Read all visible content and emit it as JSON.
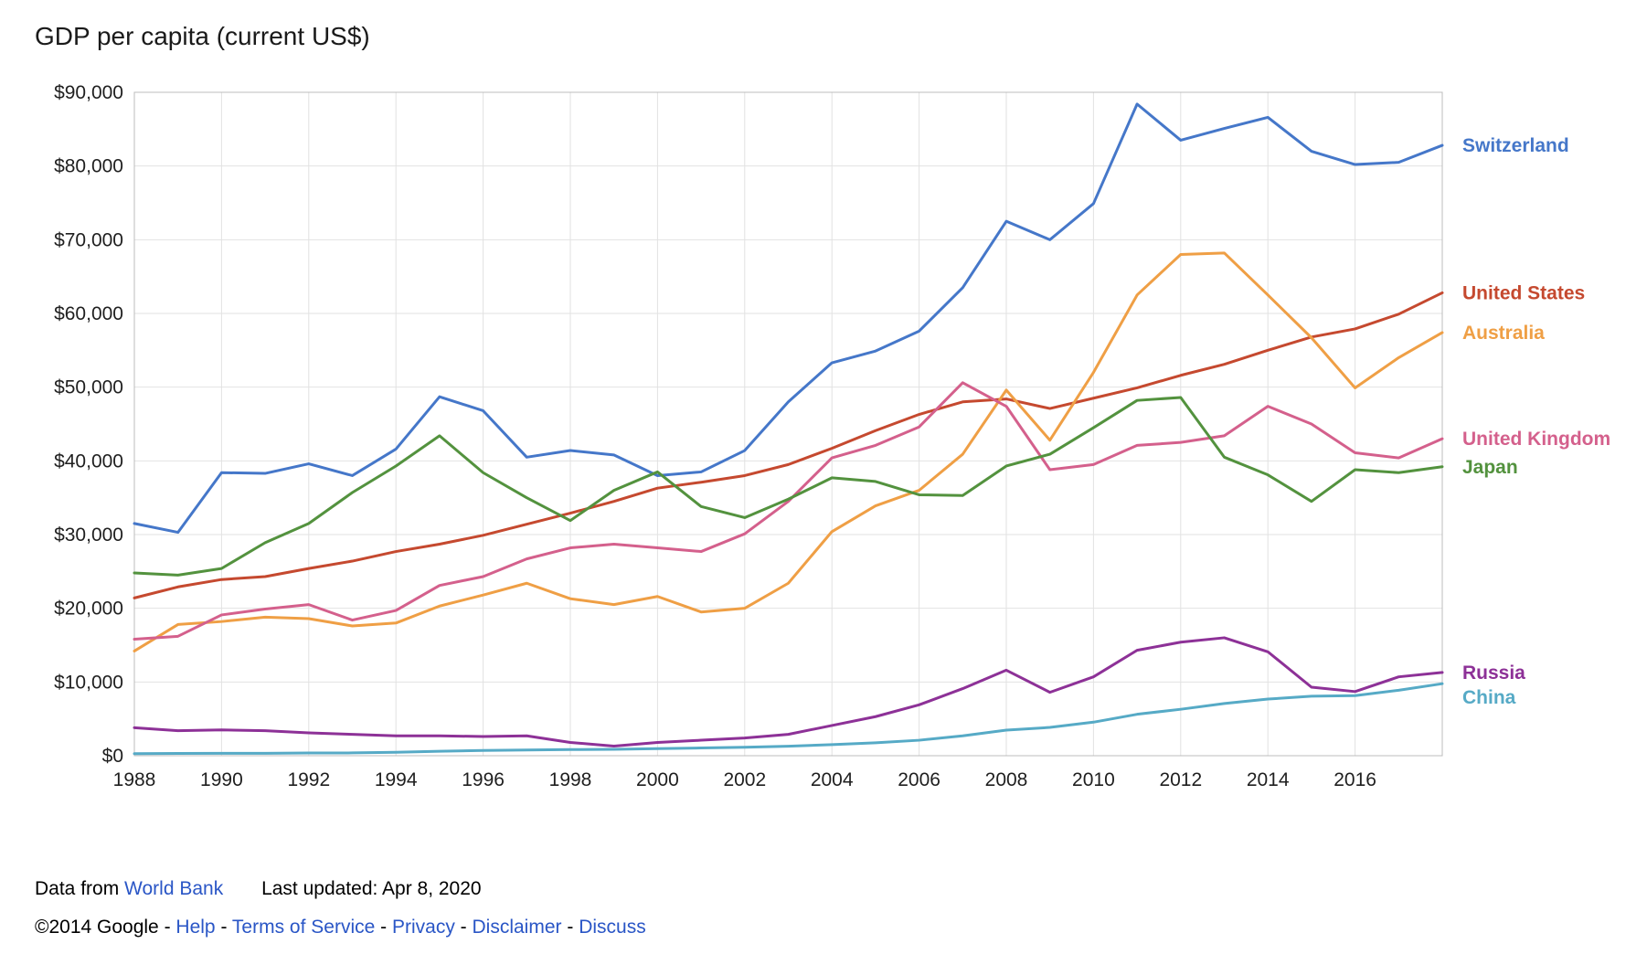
{
  "title": "GDP per capita (current US$)",
  "footer": {
    "data_from": "Data from",
    "source_link": "World Bank",
    "last_updated": "Last updated: Apr 8, 2020",
    "copyright": "©2014 Google",
    "separator": " - ",
    "links": [
      "Help",
      "Terms of Service",
      "Privacy",
      "Disclaimer",
      "Discuss"
    ],
    "link_color": "#2a56c6"
  },
  "chart_data": {
    "type": "line",
    "title": "GDP per capita (current US$)",
    "xlabel": "",
    "ylabel": "",
    "xlim": [
      1988,
      2018
    ],
    "ylim": [
      0,
      90000
    ],
    "grid": true,
    "legend_position": "right",
    "x_ticks": [
      1988,
      1990,
      1992,
      1994,
      1996,
      1998,
      2000,
      2002,
      2004,
      2006,
      2008,
      2010,
      2012,
      2014,
      2016
    ],
    "y_ticks": [
      0,
      10000,
      20000,
      30000,
      40000,
      50000,
      60000,
      70000,
      80000,
      90000
    ],
    "y_tick_labels": [
      "$0",
      "$10,000",
      "$20,000",
      "$30,000",
      "$40,000",
      "$50,000",
      "$60,000",
      "$70,000",
      "$80,000",
      "$90,000"
    ],
    "x": [
      1988,
      1989,
      1990,
      1991,
      1992,
      1993,
      1994,
      1995,
      1996,
      1997,
      1998,
      1999,
      2000,
      2001,
      2002,
      2003,
      2004,
      2005,
      2006,
      2007,
      2008,
      2009,
      2010,
      2011,
      2012,
      2013,
      2014,
      2015,
      2016,
      2017,
      2018
    ],
    "series": [
      {
        "name": "Switzerland",
        "color": "#4577c9",
        "values": [
          31500,
          30300,
          38400,
          38300,
          39600,
          38000,
          41600,
          48700,
          46800,
          40500,
          41400,
          40800,
          38000,
          38500,
          41400,
          48000,
          53300,
          54900,
          57600,
          63500,
          72500,
          70000,
          74900,
          88400,
          83500,
          85100,
          86600,
          82000,
          80200,
          80500,
          82800
        ]
      },
      {
        "name": "United States",
        "color": "#c5492f",
        "values": [
          21400,
          22900,
          23900,
          24300,
          25400,
          26400,
          27700,
          28700,
          29900,
          31400,
          32900,
          34500,
          36300,
          37100,
          38000,
          39500,
          41700,
          44100,
          46300,
          48000,
          48400,
          47100,
          48500,
          49900,
          51600,
          53100,
          55000,
          56800,
          57900,
          59900,
          62800
        ]
      },
      {
        "name": "Australia",
        "color": "#ef9f45",
        "values": [
          14200,
          17800,
          18200,
          18800,
          18600,
          17600,
          18000,
          20300,
          21800,
          23400,
          21300,
          20500,
          21600,
          19500,
          20000,
          23400,
          30400,
          33900,
          36000,
          40900,
          49600,
          42800,
          52000,
          62500,
          68000,
          68200,
          62500,
          56700,
          49900,
          54000,
          57400
        ]
      },
      {
        "name": "United Kingdom",
        "color": "#d4608c",
        "values": [
          15800,
          16200,
          19100,
          19900,
          20500,
          18400,
          19700,
          23100,
          24300,
          26700,
          28200,
          28700,
          28200,
          27700,
          30100,
          34500,
          40400,
          42100,
          44600,
          50600,
          47400,
          38800,
          39500,
          42100,
          42500,
          43400,
          47400,
          45000,
          41100,
          40400,
          43000
        ]
      },
      {
        "name": "Japan",
        "color": "#53923e",
        "values": [
          24800,
          24500,
          25400,
          28900,
          31500,
          35700,
          39300,
          43400,
          38400,
          35000,
          31900,
          36000,
          38500,
          33800,
          32300,
          34800,
          37700,
          37200,
          35400,
          35300,
          39300,
          40900,
          44500,
          48200,
          48600,
          40500,
          38100,
          34500,
          38800,
          38400,
          39200
        ]
      },
      {
        "name": "Russia",
        "color": "#8d3197",
        "values": [
          3800,
          3400,
          3500,
          3400,
          3100,
          2900,
          2700,
          2700,
          2600,
          2700,
          1800,
          1300,
          1800,
          2100,
          2400,
          2900,
          4100,
          5300,
          6900,
          9100,
          11600,
          8600,
          10700,
          14300,
          15400,
          16000,
          14100,
          9300,
          8700,
          10700,
          11300
        ]
      },
      {
        "name": "China",
        "color": "#56aac6",
        "values": [
          280,
          310,
          320,
          330,
          370,
          380,
          470,
          610,
          710,
          780,
          830,
          870,
          960,
          1050,
          1150,
          1290,
          1510,
          1750,
          2100,
          2700,
          3470,
          3840,
          4550,
          5620,
          6300,
          7080,
          7680,
          8070,
          8150,
          8880,
          9770
        ]
      }
    ]
  }
}
